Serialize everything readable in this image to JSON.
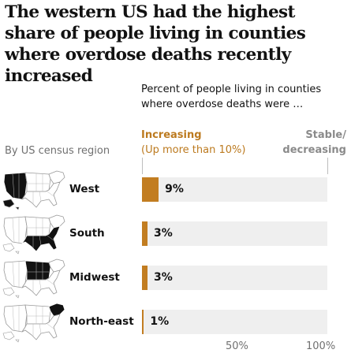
{
  "title": "The western US had the highest share of people living in counties where overdose deaths recently increased",
  "subtitle": "Percent of people living in counties where overdose deaths were …",
  "legend": {
    "increasing": "Increasing",
    "increasing_note": "(Up more than 10%)",
    "stable": "Stable/ decreasing"
  },
  "region_header": "By US census region",
  "colors": {
    "increasing": "#c27d21",
    "track": "#efefef",
    "highlight_region": "#121212"
  },
  "chart_data": {
    "type": "bar",
    "orientation": "horizontal",
    "categories": [
      "West",
      "South",
      "Midwest",
      "North-east"
    ],
    "series": [
      {
        "values": [
          9,
          3,
          3,
          1
        ]
      }
    ],
    "value_labels": [
      "9%",
      "3%",
      "3%",
      "1%"
    ],
    "xlim": [
      0,
      100
    ],
    "x_tick_labels": [
      "50%",
      "100%"
    ],
    "grid": false,
    "icons": [
      "us-map-west-highlighted-icon",
      "us-map-south-highlighted-icon",
      "us-map-midwest-highlighted-icon",
      "us-map-northeast-highlighted-icon"
    ]
  }
}
